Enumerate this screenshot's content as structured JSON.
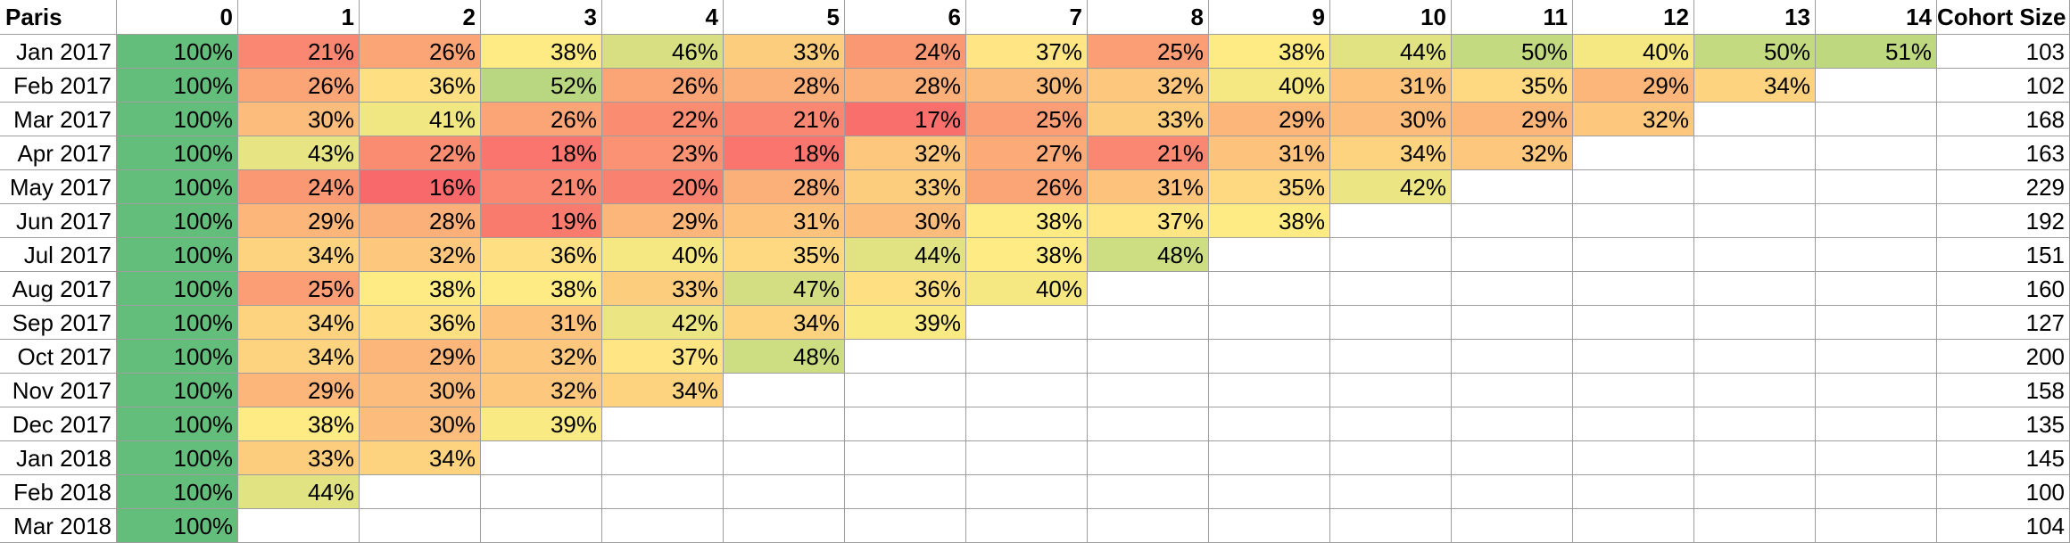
{
  "chart_data": {
    "type": "heatmap",
    "title": "Paris",
    "columns": [
      "0",
      "1",
      "2",
      "3",
      "4",
      "5",
      "6",
      "7",
      "8",
      "9",
      "10",
      "11",
      "12",
      "13",
      "14"
    ],
    "size_header": "Cohort Size",
    "cohorts": [
      {
        "label": "Jan 2017",
        "values": [
          100,
          21,
          26,
          38,
          46,
          33,
          24,
          37,
          25,
          38,
          44,
          50,
          40,
          50,
          51
        ],
        "size": 103
      },
      {
        "label": "Feb 2017",
        "values": [
          100,
          26,
          36,
          52,
          26,
          28,
          28,
          30,
          32,
          40,
          31,
          35,
          29,
          34
        ],
        "size": 102
      },
      {
        "label": "Mar 2017",
        "values": [
          100,
          30,
          41,
          26,
          22,
          21,
          17,
          25,
          33,
          29,
          30,
          29,
          32
        ],
        "size": 168
      },
      {
        "label": "Apr 2017",
        "values": [
          100,
          43,
          22,
          18,
          23,
          18,
          32,
          27,
          21,
          31,
          34,
          32
        ],
        "size": 163
      },
      {
        "label": "May 2017",
        "values": [
          100,
          24,
          16,
          21,
          20,
          28,
          33,
          26,
          31,
          35,
          42
        ],
        "size": 229
      },
      {
        "label": "Jun 2017",
        "values": [
          100,
          29,
          28,
          19,
          29,
          31,
          30,
          38,
          37,
          38
        ],
        "size": 192
      },
      {
        "label": "Jul 2017",
        "values": [
          100,
          34,
          32,
          36,
          40,
          35,
          44,
          38,
          48
        ],
        "size": 151
      },
      {
        "label": "Aug 2017",
        "values": [
          100,
          25,
          38,
          38,
          33,
          47,
          36,
          40
        ],
        "size": 160
      },
      {
        "label": "Sep 2017",
        "values": [
          100,
          34,
          36,
          31,
          42,
          34,
          39
        ],
        "size": 127
      },
      {
        "label": "Oct 2017",
        "values": [
          100,
          34,
          29,
          32,
          37,
          48
        ],
        "size": 200
      },
      {
        "label": "Nov 2017",
        "values": [
          100,
          29,
          30,
          32,
          34
        ],
        "size": 158
      },
      {
        "label": "Dec 2017",
        "values": [
          100,
          38,
          30,
          39
        ],
        "size": 135
      },
      {
        "label": "Jan 2018",
        "values": [
          100,
          33,
          34
        ],
        "size": 145
      },
      {
        "label": "Feb 2018",
        "values": [
          100,
          44
        ],
        "size": 100
      },
      {
        "label": "Mar 2018",
        "values": [
          100
        ],
        "size": 104
      }
    ],
    "value_format": "percent",
    "color_scale": {
      "min": 16,
      "max": 100,
      "low_color": "#f8696b",
      "mid_color": "#ffeb84",
      "high_color": "#63be7b"
    }
  }
}
